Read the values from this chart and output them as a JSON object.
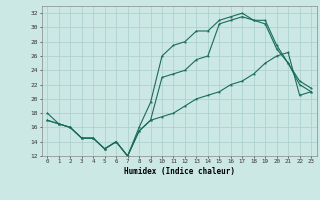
{
  "xlabel": "Humidex (Indice chaleur)",
  "ylabel": "",
  "bg_color": "#cce8e4",
  "grid_color": "#aacfcb",
  "line_color": "#1a6b5a",
  "xlim": [
    -0.5,
    23.5
  ],
  "ylim": [
    12,
    33
  ],
  "xticks": [
    0,
    1,
    2,
    3,
    4,
    5,
    6,
    7,
    8,
    9,
    10,
    11,
    12,
    13,
    14,
    15,
    16,
    17,
    18,
    19,
    20,
    21,
    22,
    23
  ],
  "yticks": [
    12,
    14,
    16,
    18,
    20,
    22,
    24,
    26,
    28,
    30,
    32
  ],
  "line1_x": [
    0,
    1,
    2,
    3,
    4,
    5,
    6,
    7,
    8,
    9,
    10,
    11,
    12,
    13,
    14,
    15,
    16,
    17,
    18,
    19,
    20,
    21,
    22,
    23
  ],
  "line1_y": [
    18,
    16.5,
    16,
    14.5,
    14.5,
    13,
    14,
    12,
    16,
    19.5,
    26,
    27.5,
    28,
    29.5,
    29.5,
    31,
    31.5,
    32,
    31,
    31,
    27.5,
    25,
    22.5,
    21.5
  ],
  "line2_x": [
    0,
    1,
    2,
    3,
    4,
    5,
    6,
    7,
    8,
    9,
    10,
    11,
    12,
    13,
    14,
    15,
    16,
    17,
    18,
    19,
    20,
    21,
    22,
    23
  ],
  "line2_y": [
    17,
    16.5,
    16,
    14.5,
    14.5,
    13,
    14,
    12,
    15.5,
    17,
    23,
    23.5,
    24,
    25.5,
    26,
    30.5,
    31,
    31.5,
    31,
    30.5,
    27,
    25,
    22,
    21
  ],
  "line3_x": [
    0,
    1,
    2,
    3,
    4,
    5,
    6,
    7,
    8,
    9,
    10,
    11,
    12,
    13,
    14,
    15,
    16,
    17,
    18,
    19,
    20,
    21,
    22,
    23
  ],
  "line3_y": [
    17,
    16.5,
    16,
    14.5,
    14.5,
    13,
    14,
    12,
    15.5,
    17,
    17.5,
    18,
    19,
    20,
    20.5,
    21,
    22,
    22.5,
    23.5,
    25,
    26,
    26.5,
    20.5,
    21
  ]
}
